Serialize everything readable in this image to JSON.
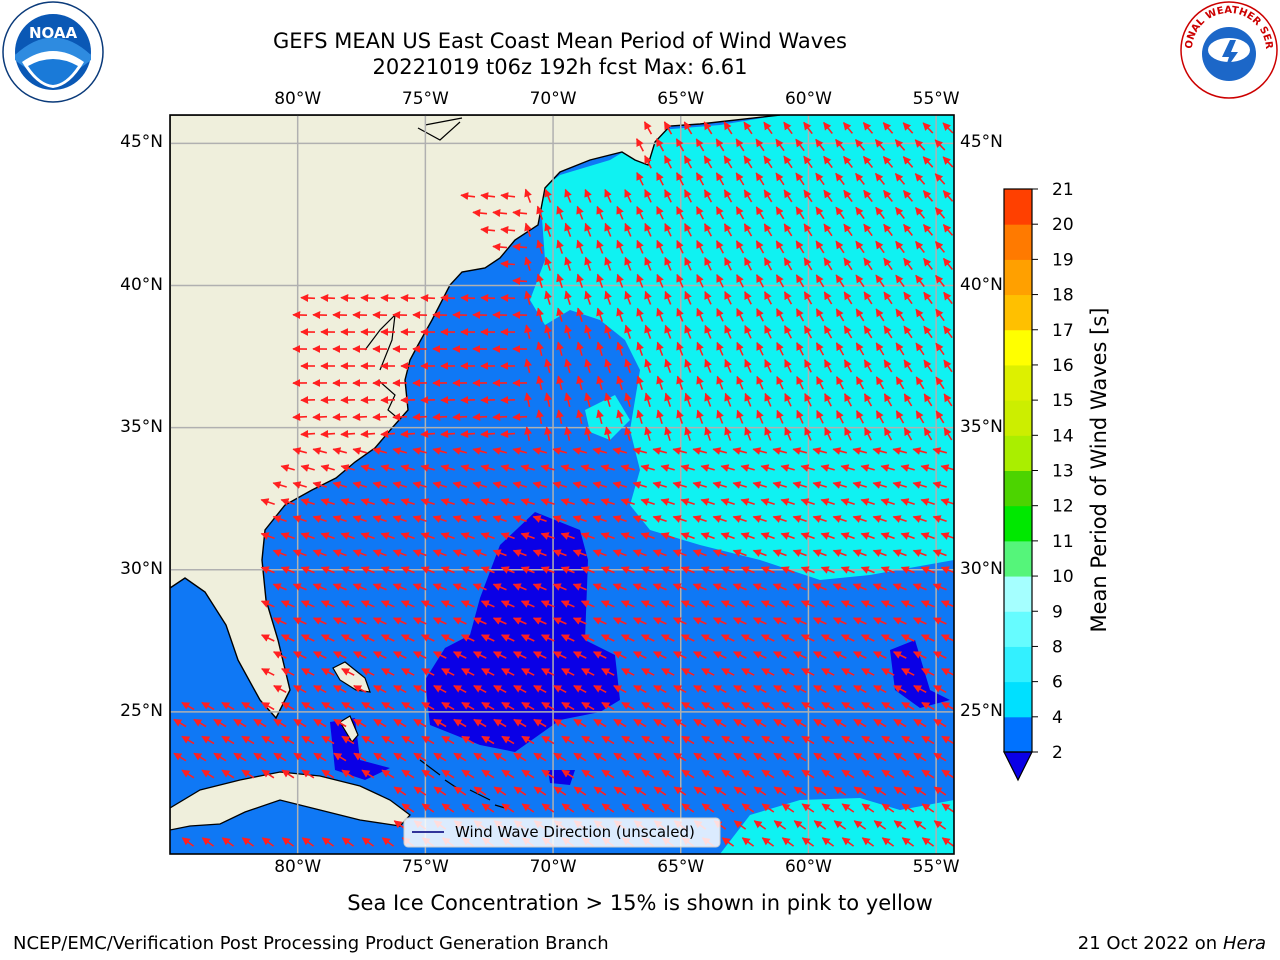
{
  "title": {
    "line1": "GEFS MEAN US East Coast Mean Period of Wind Waves",
    "line2": "20221019 t06z 192h fcst   Max: 6.61"
  },
  "axes": {
    "lon_labels": [
      "80°W",
      "75°W",
      "70°W",
      "65°W",
      "60°W",
      "55°W"
    ],
    "lat_labels": [
      "45°N",
      "40°N",
      "35°N",
      "30°N",
      "25°N"
    ],
    "lon_values": [
      -80,
      -75,
      -70,
      -65,
      -60,
      -55
    ],
    "lat_values": [
      45,
      40,
      35,
      30,
      25
    ],
    "lon_range": [
      -85,
      -54.3
    ],
    "lat_range": [
      20,
      46
    ]
  },
  "legend": {
    "label": "Wind Wave Direction (unscaled)"
  },
  "colorbar": {
    "label": "Mean Period of Wind Waves [s]",
    "ticks": [
      "2",
      "4",
      "6",
      "8",
      "9",
      "10",
      "11",
      "12",
      "13",
      "14",
      "15",
      "16",
      "17",
      "18",
      "19",
      "20",
      "21"
    ],
    "colors": [
      "#0072ff",
      "#00e0ff",
      "#33f0ff",
      "#66fcff",
      "#a5ffff",
      "#55f57a",
      "#00e800",
      "#4cd400",
      "#aaee00",
      "#ccee00",
      "#ddf000",
      "#ffff00",
      "#ffc000",
      "#ffa000",
      "#ff7a00",
      "#ff4000",
      "#ff0000"
    ],
    "under_color": "#0a00e6"
  },
  "chart_data": {
    "type": "heatmap",
    "variable": "Mean Period of Wind Waves [s]",
    "max_value": 6.61,
    "regions": [
      {
        "range_s": [
          2,
          4
        ],
        "description": "most of the basin"
      },
      {
        "range_s": [
          4,
          6
        ],
        "description": "northeast open ocean and Gulf of Maine"
      },
      {
        "range_s": [
          0,
          2
        ],
        "description": "south-central area near the Bahamas"
      }
    ]
  },
  "notes": {
    "ice": "Sea Ice Concentration > 15% is shown in pink to yellow",
    "left": "NCEP/EMC/Verification Post Processing Product Generation Branch",
    "right_date": "21 Oct 2022 on ",
    "right_machine": "Hera"
  },
  "logos": {
    "noaa": "NOAA",
    "nws": "NATIONAL WEATHER SERVICE"
  },
  "colors": {
    "ocean_mid": "#0f78f5",
    "ocean_high": "#0ff2f2",
    "ocean_low": "#0a00e6",
    "land": "#efefdc",
    "arrow": "#ff2020",
    "grid": "#b0b0b0"
  }
}
